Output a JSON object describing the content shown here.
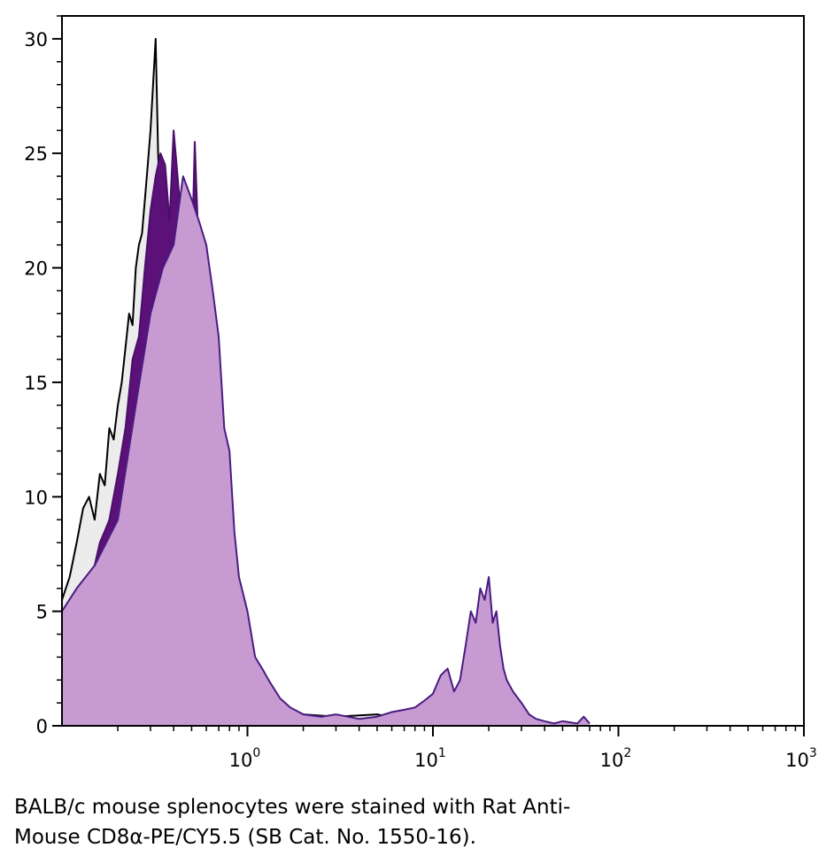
{
  "chart_data": {
    "type": "area",
    "scale": {
      "x": "log",
      "y": "linear"
    },
    "xlim": [
      0.1,
      1000
    ],
    "ylim": [
      0,
      31
    ],
    "x_ticks": [
      {
        "value": 1,
        "base": "10",
        "exp": "0"
      },
      {
        "value": 10,
        "base": "10",
        "exp": "1"
      },
      {
        "value": 100,
        "base": "10",
        "exp": "2"
      },
      {
        "value": 1000,
        "base": "10",
        "exp": "3"
      }
    ],
    "y_ticks": [
      "0",
      "5",
      "10",
      "15",
      "20",
      "25",
      "30"
    ],
    "grid": false,
    "series": [
      {
        "style": "black-outline",
        "color": "#000000",
        "fill": "#ececec",
        "x": [
          0.1,
          0.11,
          0.12,
          0.13,
          0.14,
          0.15,
          0.16,
          0.17,
          0.18,
          0.19,
          0.2,
          0.21,
          0.22,
          0.23,
          0.24,
          0.25,
          0.26,
          0.27,
          0.28,
          0.29,
          0.3,
          0.31,
          0.32,
          0.33,
          0.34,
          0.35,
          0.36,
          0.38,
          0.4,
          0.42,
          0.44,
          0.46,
          0.48,
          0.5,
          0.55,
          0.6,
          0.65,
          0.7,
          0.8,
          0.9,
          1.0,
          1.2,
          1.5,
          2.0,
          3.0,
          5.0,
          8.0
        ],
        "y": [
          5.5,
          6.5,
          8,
          9.5,
          10,
          9,
          11,
          10.5,
          13,
          12.5,
          14,
          15,
          16.5,
          18,
          17.5,
          20,
          21,
          21.5,
          23,
          24.5,
          26,
          28,
          30,
          25,
          22,
          21,
          18,
          17.5,
          18,
          17,
          16,
          17,
          15,
          14.5,
          14,
          13,
          11,
          9,
          7,
          5,
          3.5,
          2,
          1,
          0.5,
          0.4,
          0.5,
          0.2
        ]
      },
      {
        "style": "purple-solid",
        "color": "#4b0f6b",
        "fill": "#5b1177",
        "x": [
          0.1,
          0.11,
          0.12,
          0.13,
          0.14,
          0.15,
          0.16,
          0.17,
          0.18,
          0.2,
          0.22,
          0.24,
          0.26,
          0.28,
          0.3,
          0.32,
          0.34,
          0.36,
          0.38,
          0.4,
          0.42,
          0.44,
          0.46,
          0.48,
          0.5,
          0.52,
          0.55,
          0.58,
          0.6,
          0.65,
          0.7,
          0.75,
          0.8,
          0.85,
          0.9,
          1.0,
          1.1,
          1.2,
          1.4,
          1.6,
          2.0,
          2.5
        ],
        "y": [
          3.5,
          4,
          5,
          5.5,
          6.5,
          7,
          8,
          8.5,
          9,
          11,
          13,
          16,
          17,
          20,
          22.5,
          24,
          25,
          24.5,
          22,
          26,
          24,
          22,
          21,
          19,
          20,
          25.5,
          20,
          18,
          17,
          14,
          12,
          10,
          7,
          5,
          4,
          3,
          2.2,
          1.5,
          1,
          0.6,
          0.3,
          0.1
        ]
      },
      {
        "style": "lavender-outlined",
        "color": "#4a1c82",
        "fill": "#c79ad1",
        "x": [
          0.1,
          0.12,
          0.15,
          0.2,
          0.25,
          0.3,
          0.35,
          0.4,
          0.45,
          0.5,
          0.55,
          0.6,
          0.65,
          0.7,
          0.75,
          0.8,
          0.85,
          0.9,
          1.0,
          1.1,
          1.2,
          1.3,
          1.5,
          1.7,
          2.0,
          2.5,
          3.0,
          4.0,
          5.0,
          6.0,
          7.0,
          8.0,
          9.0,
          10,
          11,
          12,
          13,
          14,
          15,
          16,
          17,
          18,
          19,
          20,
          21,
          22,
          23,
          24,
          25,
          27,
          30,
          33,
          36,
          40,
          45,
          50,
          60,
          65,
          70
        ],
        "y": [
          5,
          6,
          7,
          9,
          14,
          18,
          20,
          21,
          24,
          23,
          22,
          21,
          19,
          17,
          13,
          12,
          8.5,
          6.5,
          5,
          3,
          2.5,
          2,
          1.2,
          0.8,
          0.5,
          0.4,
          0.5,
          0.3,
          0.4,
          0.6,
          0.7,
          0.8,
          1.1,
          1.4,
          2.2,
          2.5,
          1.5,
          2,
          3.5,
          5,
          4.5,
          6,
          5.5,
          6.5,
          4.5,
          5,
          3.5,
          2.5,
          2,
          1.5,
          1,
          0.5,
          0.3,
          0.2,
          0.1,
          0.2,
          0.1,
          0.4,
          0.1
        ]
      }
    ]
  },
  "caption": {
    "line1": "BALB/c mouse splenocytes were stained with Rat Anti-",
    "line2": "Mouse CD8α-PE/CY5.5 (SB Cat. No. 1550-16)."
  }
}
